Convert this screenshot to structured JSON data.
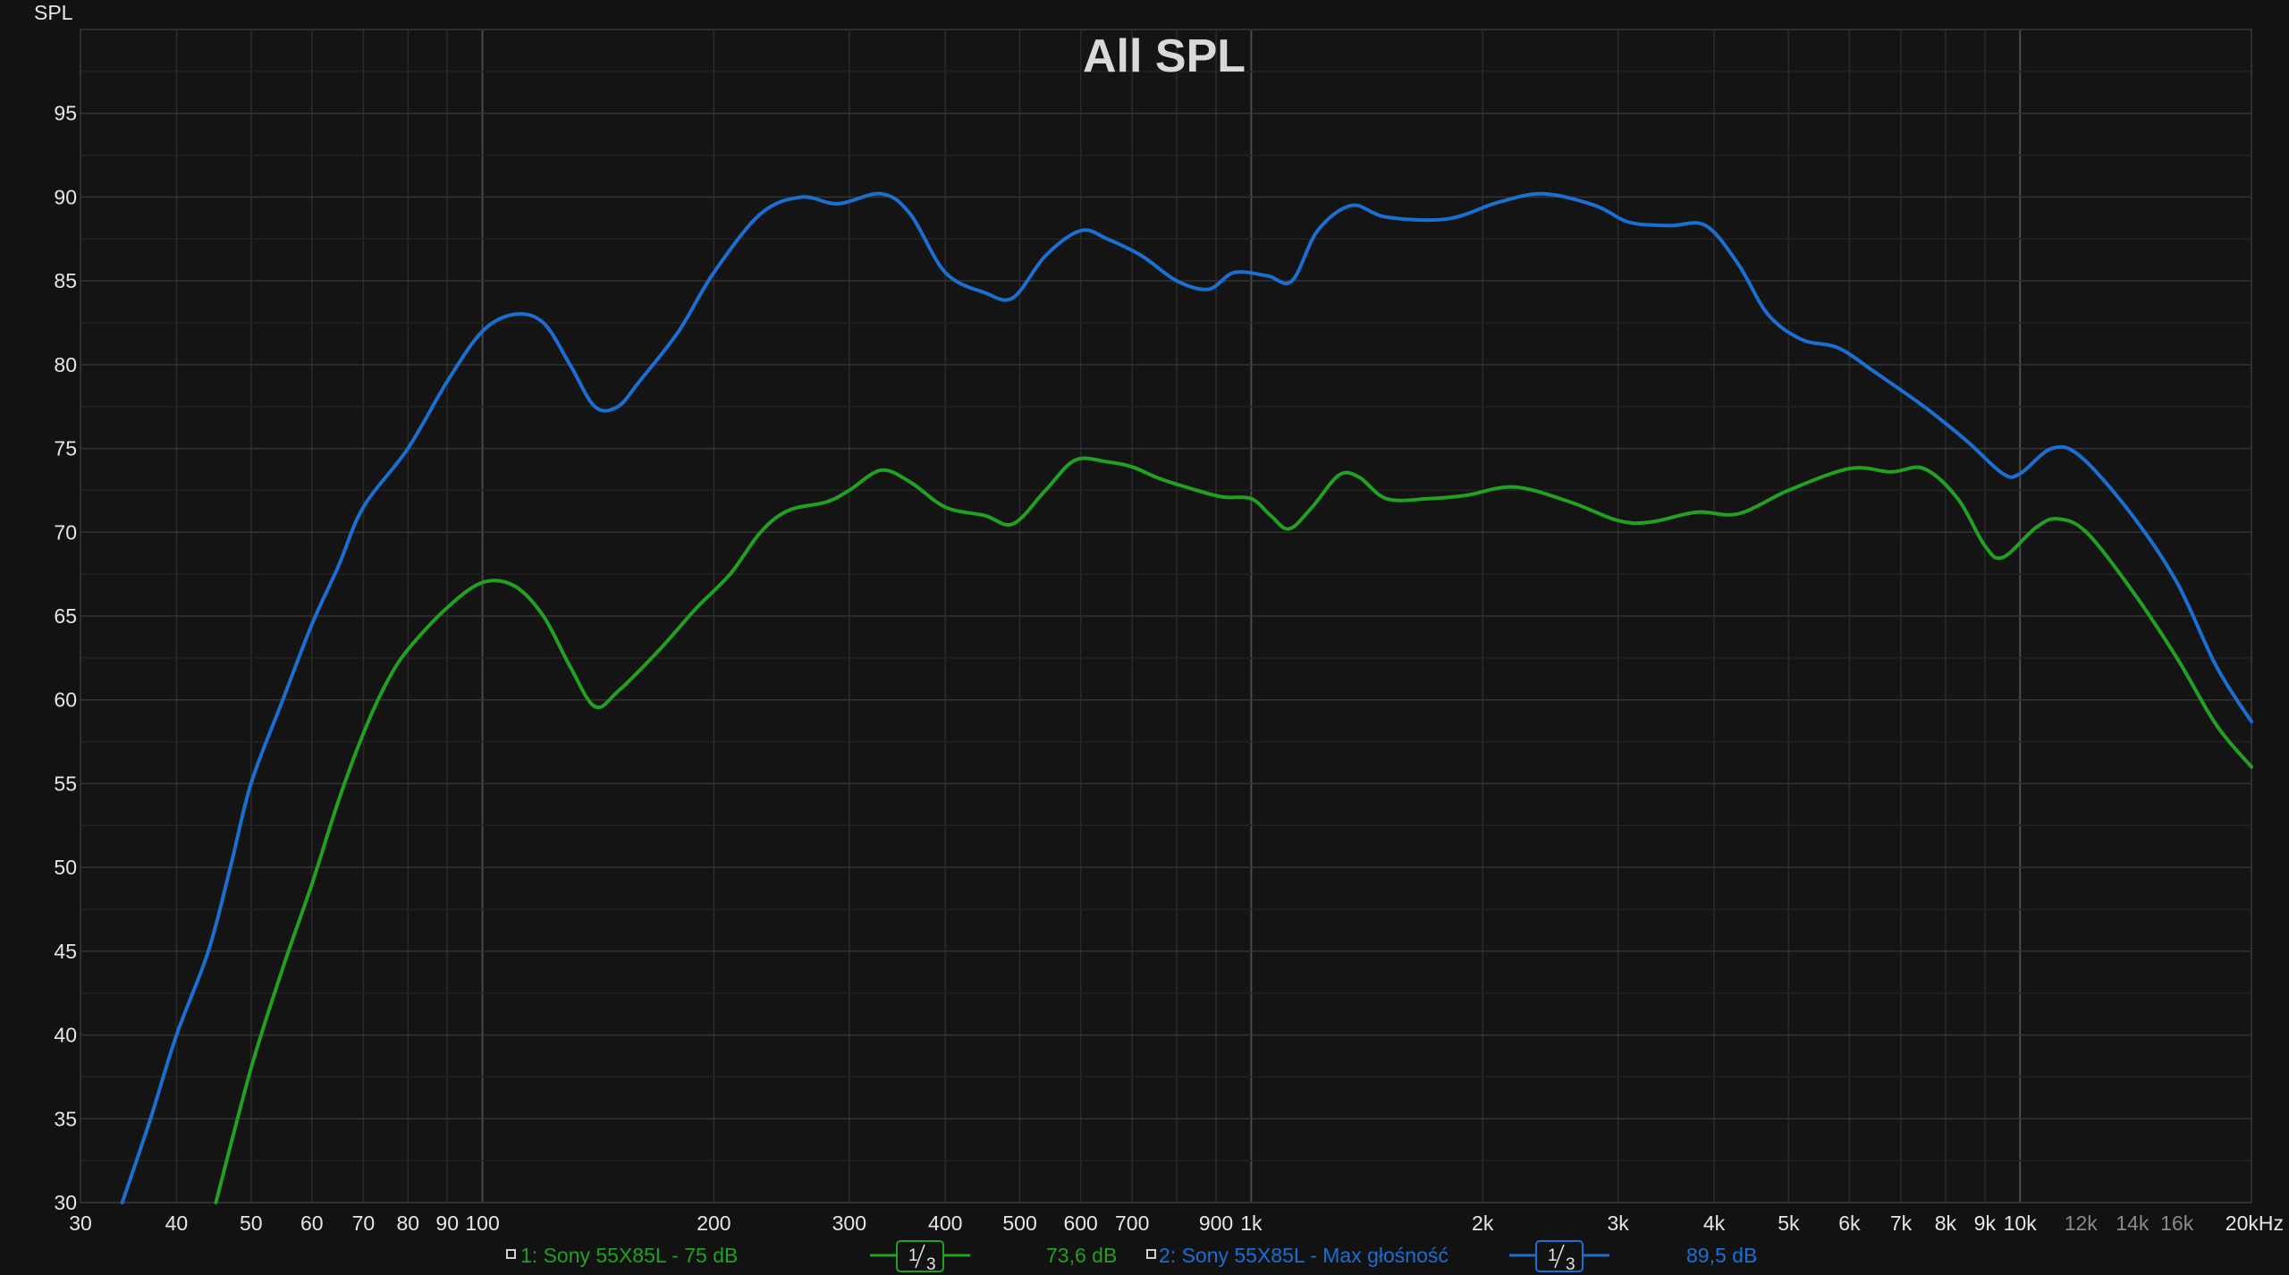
{
  "chart_data": {
    "type": "line",
    "title": "All SPL",
    "ylabel": "SPL",
    "xlabel": "",
    "xscale": "log",
    "xlim": [
      30,
      20000
    ],
    "ylim": [
      30,
      100
    ],
    "grid": true,
    "y_ticks": [
      "30",
      "35",
      "40",
      "45",
      "50",
      "55",
      "60",
      "65",
      "70",
      "75",
      "80",
      "85",
      "90",
      "95"
    ],
    "x_ticks": [
      {
        "value": 30,
        "label": "30"
      },
      {
        "value": 40,
        "label": "40"
      },
      {
        "value": 50,
        "label": "50"
      },
      {
        "value": 60,
        "label": "60"
      },
      {
        "value": 70,
        "label": "70"
      },
      {
        "value": 80,
        "label": "80"
      },
      {
        "value": 90,
        "label": "90"
      },
      {
        "value": 100,
        "label": "100"
      },
      {
        "value": 200,
        "label": "200"
      },
      {
        "value": 300,
        "label": "300"
      },
      {
        "value": 400,
        "label": "400"
      },
      {
        "value": 500,
        "label": "500"
      },
      {
        "value": 600,
        "label": "600"
      },
      {
        "value": 700,
        "label": "700"
      },
      {
        "value": 900,
        "label": "900"
      },
      {
        "value": 1000,
        "label": "1k"
      },
      {
        "value": 2000,
        "label": "2k"
      },
      {
        "value": 3000,
        "label": "3k"
      },
      {
        "value": 4000,
        "label": "4k"
      },
      {
        "value": 5000,
        "label": "5k"
      },
      {
        "value": 6000,
        "label": "6k"
      },
      {
        "value": 7000,
        "label": "7k"
      },
      {
        "value": 8000,
        "label": "8k"
      },
      {
        "value": 9000,
        "label": "9k"
      },
      {
        "value": 10000,
        "label": "10k"
      },
      {
        "value": 12000,
        "label": "12k",
        "dim": true
      },
      {
        "value": 14000,
        "label": "14k",
        "dim": true
      },
      {
        "value": 16000,
        "label": "16k",
        "dim": true
      },
      {
        "value": 20000,
        "label": "20kHz"
      }
    ],
    "series": [
      {
        "name": "1: Sony 55X85L - 75 dB",
        "color": "#22a022",
        "smoothing_num": "1",
        "smoothing_den": "3",
        "value_label": "73,6 dB",
        "points": [
          [
            45,
            30
          ],
          [
            50,
            38
          ],
          [
            55,
            44
          ],
          [
            60,
            49
          ],
          [
            65,
            54
          ],
          [
            70,
            58
          ],
          [
            75,
            61
          ],
          [
            80,
            63
          ],
          [
            90,
            65.5
          ],
          [
            100,
            67
          ],
          [
            110,
            66.8
          ],
          [
            120,
            65
          ],
          [
            130,
            62
          ],
          [
            140,
            59.6
          ],
          [
            150,
            60.5
          ],
          [
            170,
            63
          ],
          [
            190,
            65.5
          ],
          [
            210,
            67.5
          ],
          [
            230,
            70
          ],
          [
            250,
            71.3
          ],
          [
            280,
            71.8
          ],
          [
            300,
            72.5
          ],
          [
            330,
            73.7
          ],
          [
            360,
            73
          ],
          [
            400,
            71.5
          ],
          [
            450,
            71
          ],
          [
            490,
            70.5
          ],
          [
            540,
            72.5
          ],
          [
            590,
            74.3
          ],
          [
            650,
            74.2
          ],
          [
            700,
            73.9
          ],
          [
            760,
            73.2
          ],
          [
            850,
            72.5
          ],
          [
            920,
            72.1
          ],
          [
            1000,
            72
          ],
          [
            1060,
            71
          ],
          [
            1120,
            70.2
          ],
          [
            1200,
            71.5
          ],
          [
            1300,
            73.4
          ],
          [
            1380,
            73.3
          ],
          [
            1500,
            72
          ],
          [
            1700,
            72
          ],
          [
            1900,
            72.2
          ],
          [
            2200,
            72.7
          ],
          [
            2600,
            71.8
          ],
          [
            3000,
            70.7
          ],
          [
            3300,
            70.6
          ],
          [
            3800,
            71.2
          ],
          [
            4300,
            71.1
          ],
          [
            5000,
            72.5
          ],
          [
            6000,
            73.8
          ],
          [
            6800,
            73.6
          ],
          [
            7500,
            73.8
          ],
          [
            8300,
            72
          ],
          [
            9000,
            69.2
          ],
          [
            9500,
            68.5
          ],
          [
            10500,
            70.3
          ],
          [
            11200,
            70.8
          ],
          [
            12200,
            70
          ],
          [
            14000,
            66.5
          ],
          [
            16000,
            62.5
          ],
          [
            18000,
            58.5
          ],
          [
            20000,
            56
          ]
        ]
      },
      {
        "name": "2: Sony 55X85L - Max głośność",
        "color": "#1b6fd1",
        "smoothing_num": "1",
        "smoothing_den": "3",
        "value_label": "89,5 dB",
        "points": [
          [
            34,
            30
          ],
          [
            37,
            35
          ],
          [
            40,
            40
          ],
          [
            44,
            45
          ],
          [
            47,
            50
          ],
          [
            50,
            55
          ],
          [
            55,
            60
          ],
          [
            60,
            64.5
          ],
          [
            65,
            68
          ],
          [
            70,
            71.5
          ],
          [
            80,
            75
          ],
          [
            90,
            79
          ],
          [
            100,
            82
          ],
          [
            110,
            83
          ],
          [
            120,
            82.5
          ],
          [
            130,
            80
          ],
          [
            140,
            77.5
          ],
          [
            150,
            77.5
          ],
          [
            160,
            79
          ],
          [
            180,
            82
          ],
          [
            200,
            85.5
          ],
          [
            230,
            89
          ],
          [
            260,
            90
          ],
          [
            290,
            89.6
          ],
          [
            330,
            90.2
          ],
          [
            360,
            89
          ],
          [
            400,
            85.5
          ],
          [
            450,
            84.3
          ],
          [
            490,
            84
          ],
          [
            540,
            86.5
          ],
          [
            600,
            88
          ],
          [
            650,
            87.5
          ],
          [
            720,
            86.5
          ],
          [
            800,
            85
          ],
          [
            880,
            84.5
          ],
          [
            950,
            85.5
          ],
          [
            1050,
            85.3
          ],
          [
            1130,
            85
          ],
          [
            1220,
            88
          ],
          [
            1350,
            89.5
          ],
          [
            1500,
            88.8
          ],
          [
            1800,
            88.7
          ],
          [
            2100,
            89.7
          ],
          [
            2400,
            90.2
          ],
          [
            2800,
            89.5
          ],
          [
            3100,
            88.5
          ],
          [
            3500,
            88.3
          ],
          [
            3900,
            88.3
          ],
          [
            4300,
            86
          ],
          [
            4700,
            83
          ],
          [
            5200,
            81.5
          ],
          [
            5800,
            81
          ],
          [
            6500,
            79.5
          ],
          [
            7500,
            77.5
          ],
          [
            8500,
            75.5
          ],
          [
            9500,
            73.5
          ],
          [
            10000,
            73.5
          ],
          [
            11000,
            75
          ],
          [
            12000,
            74.5
          ],
          [
            14000,
            71
          ],
          [
            16000,
            67
          ],
          [
            18000,
            62
          ],
          [
            20000,
            58.7
          ]
        ]
      }
    ]
  }
}
